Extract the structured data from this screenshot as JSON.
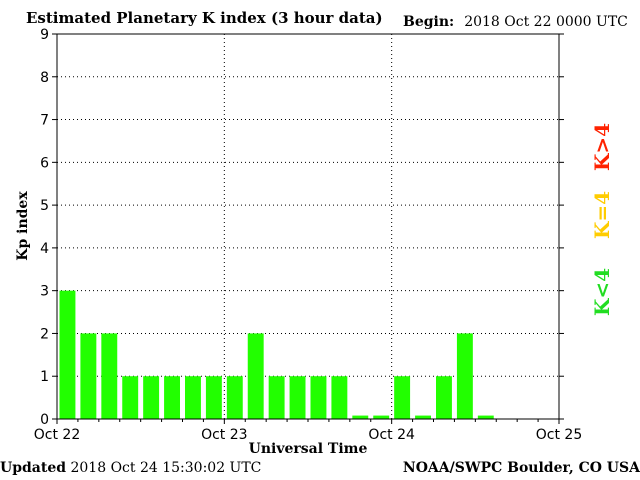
{
  "title": "Estimated Planetary K index (3 hour data)",
  "begin": {
    "label": "Begin:",
    "value": "2018 Oct 22 0000 UTC"
  },
  "updated": {
    "label": "Updated",
    "value": "2018 Oct 24 15:30:02 UTC"
  },
  "credit": "NOAA/SWPC Boulder, CO USA",
  "legend": [
    {
      "text": "K>4",
      "color": "#ff2200"
    },
    {
      "text": "K=4",
      "color": "#ffcc00"
    },
    {
      "text": "K<4",
      "color": "#22dd22"
    }
  ],
  "chart_data": {
    "type": "bar",
    "title": "Estimated Planetary K index (3 hour data)",
    "xlabel": "Universal Time",
    "ylabel": "Kp index",
    "ylim": [
      0,
      9
    ],
    "yticks": [
      "0",
      "1",
      "2",
      "3",
      "4",
      "5",
      "6",
      "7",
      "8",
      "9"
    ],
    "xticks": [
      "Oct 22",
      "Oct 23",
      "Oct 24",
      "Oct 25"
    ],
    "grid": true,
    "bar_color": "#22ff00",
    "interval_hours": 3,
    "values": [
      3,
      2,
      2,
      1,
      1,
      1,
      1,
      1,
      1,
      2,
      1,
      1,
      1,
      1,
      0,
      0,
      1,
      0,
      1,
      2,
      0
    ]
  }
}
